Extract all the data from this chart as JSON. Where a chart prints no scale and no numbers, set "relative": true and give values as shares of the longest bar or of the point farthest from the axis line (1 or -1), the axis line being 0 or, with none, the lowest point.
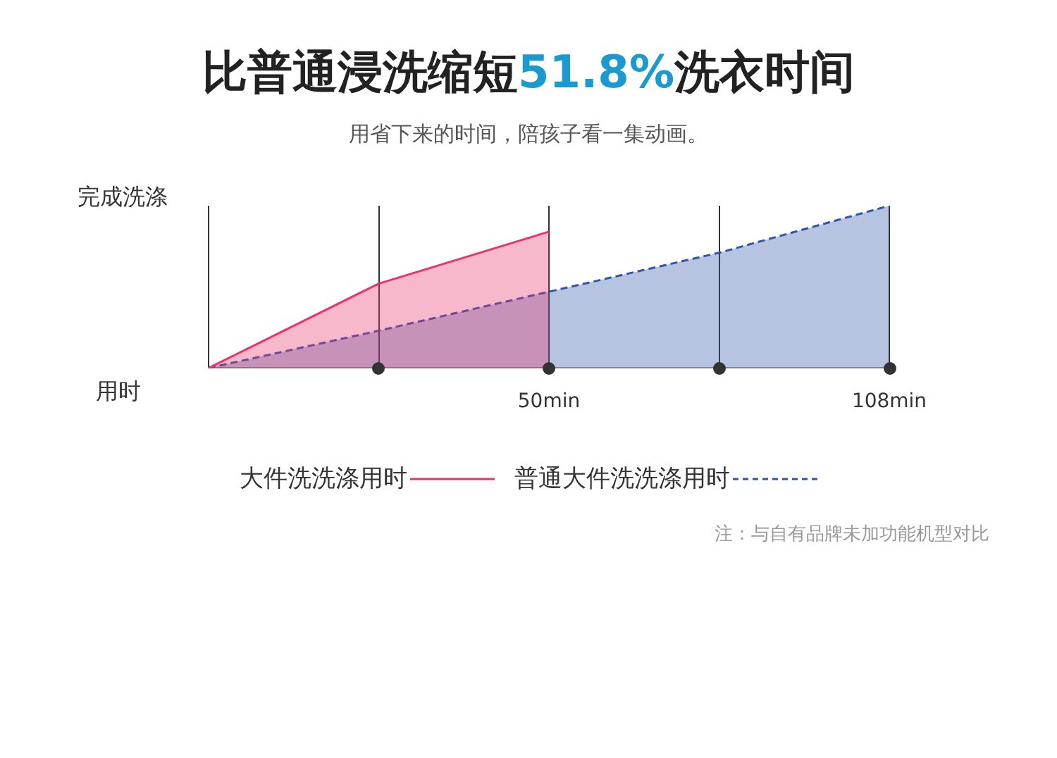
{
  "chart_data": {
    "type": "area",
    "title": "比普通浸洗缩短51.8%洗衣时间",
    "subtitle": "用省下来的时间，陪孩子看一集动画。",
    "relative": true,
    "categories": [
      null,
      null,
      "50min",
      null,
      "108min"
    ],
    "grid": "x",
    "legend": "bottom",
    "series": [
      {
        "name": "大件洗洗涤用时",
        "color": "#e8336e",
        "line_style": "solid",
        "values": [
          0,
          0.52,
          0.84,
          null,
          null
        ]
      },
      {
        "name": "普通大件洗洗涤用时",
        "color": "#2f56a8",
        "line_style": "dashed",
        "values": [
          0,
          0.23,
          0.47,
          0.71,
          1
        ]
      }
    ],
    "annotations": [
      "完成洗涤",
      "用时",
      "注：与自有品牌未加功能机型对比"
    ]
  }
}
